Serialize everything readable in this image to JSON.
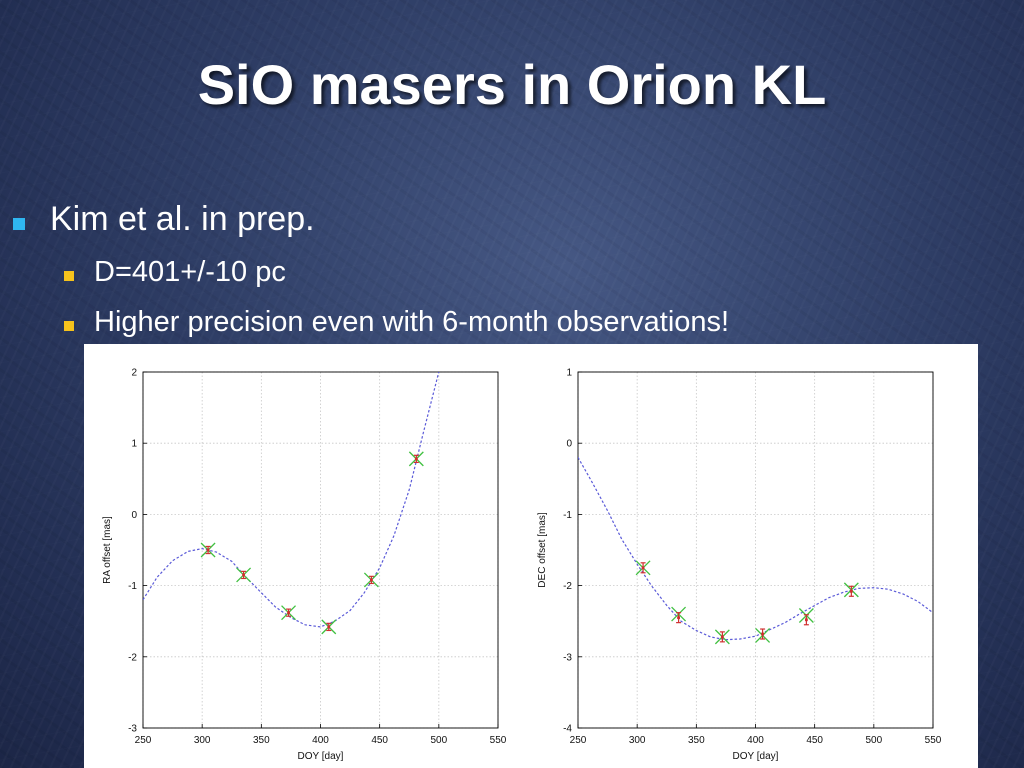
{
  "slide": {
    "title": "SiO masers in Orion KL",
    "bullet_1": "Kim et al. in prep.",
    "sub_bullets": [
      "D=401+/-10 pc",
      "Higher precision even with 6-month observations!"
    ]
  },
  "colors": {
    "bullet_level1": "#2fb6f0",
    "bullet_level2": "#f6c21c",
    "fit_curve": "#5a5ad8",
    "data_points": "#d03030",
    "model_points": "#40c040"
  },
  "chart_data": [
    {
      "type": "scatter",
      "title": "",
      "xlabel": "DOY [day]",
      "ylabel": "RA offset [mas]",
      "xlim": [
        250,
        550
      ],
      "ylim": [
        -3,
        2
      ],
      "xticks": [
        "250",
        "300",
        "350",
        "400",
        "450",
        "500",
        "550"
      ],
      "yticks": [
        "-3",
        "-2",
        "-1",
        "0",
        "1",
        "2"
      ],
      "grid": true,
      "series": [
        {
          "points": [
            {
              "x": 305,
              "y": -0.5,
              "yerr": 0.05
            },
            {
              "x": 335,
              "y": -0.85,
              "yerr": 0.05
            },
            {
              "x": 373,
              "y": -1.38,
              "yerr": 0.05
            },
            {
              "x": 407,
              "y": -1.58,
              "yerr": 0.05
            },
            {
              "x": 443,
              "y": -0.92,
              "yerr": 0.05
            },
            {
              "x": 481,
              "y": 0.78,
              "yerr": 0.05
            }
          ],
          "model_points": [
            {
              "x": 305,
              "y": -0.5
            },
            {
              "x": 335,
              "y": -0.85
            },
            {
              "x": 373,
              "y": -1.38
            },
            {
              "x": 407,
              "y": -1.58
            },
            {
              "x": 443,
              "y": -0.92
            },
            {
              "x": 481,
              "y": 0.78
            }
          ],
          "fit_curve": [
            [
              250,
              -1.2
            ],
            [
              262,
              -0.88
            ],
            [
              275,
              -0.65
            ],
            [
              288,
              -0.52
            ],
            [
              300,
              -0.48
            ],
            [
              312,
              -0.53
            ],
            [
              325,
              -0.66
            ],
            [
              337,
              -0.88
            ],
            [
              350,
              -1.1
            ],
            [
              362,
              -1.3
            ],
            [
              375,
              -1.45
            ],
            [
              387,
              -1.55
            ],
            [
              400,
              -1.58
            ],
            [
              412,
              -1.5
            ],
            [
              425,
              -1.35
            ],
            [
              437,
              -1.1
            ],
            [
              450,
              -0.75
            ],
            [
              462,
              -0.3
            ],
            [
              475,
              0.35
            ],
            [
              487,
              1.15
            ],
            [
              500,
              2.0
            ]
          ]
        }
      ]
    },
    {
      "type": "scatter",
      "title": "",
      "xlabel": "DOY [day]",
      "ylabel": "DEC offset [mas]",
      "xlim": [
        250,
        550
      ],
      "ylim": [
        -4,
        1
      ],
      "xticks": [
        "250",
        "300",
        "350",
        "400",
        "450",
        "500",
        "550"
      ],
      "yticks": [
        "-4",
        "-3",
        "-2",
        "-1",
        "0",
        "1"
      ],
      "grid": true,
      "series": [
        {
          "points": [
            {
              "x": 305,
              "y": -1.75,
              "yerr": 0.07
            },
            {
              "x": 335,
              "y": -2.45,
              "yerr": 0.07
            },
            {
              "x": 372,
              "y": -2.72,
              "yerr": 0.07
            },
            {
              "x": 406,
              "y": -2.68,
              "yerr": 0.07
            },
            {
              "x": 443,
              "y": -2.48,
              "yerr": 0.07
            },
            {
              "x": 481,
              "y": -2.08,
              "yerr": 0.07
            }
          ],
          "model_points": [
            {
              "x": 305,
              "y": -1.75
            },
            {
              "x": 335,
              "y": -2.4
            },
            {
              "x": 372,
              "y": -2.72
            },
            {
              "x": 406,
              "y": -2.7
            },
            {
              "x": 443,
              "y": -2.42
            },
            {
              "x": 481,
              "y": -2.06
            }
          ],
          "fit_curve": [
            [
              250,
              -0.2
            ],
            [
              262,
              -0.55
            ],
            [
              275,
              -0.95
            ],
            [
              287,
              -1.35
            ],
            [
              300,
              -1.7
            ],
            [
              312,
              -2.0
            ],
            [
              325,
              -2.28
            ],
            [
              337,
              -2.5
            ],
            [
              350,
              -2.63
            ],
            [
              362,
              -2.72
            ],
            [
              375,
              -2.76
            ],
            [
              387,
              -2.75
            ],
            [
              400,
              -2.71
            ],
            [
              412,
              -2.62
            ],
            [
              425,
              -2.52
            ],
            [
              437,
              -2.4
            ],
            [
              450,
              -2.28
            ],
            [
              462,
              -2.17
            ],
            [
              475,
              -2.09
            ],
            [
              487,
              -2.04
            ],
            [
              500,
              -2.03
            ],
            [
              512,
              -2.05
            ],
            [
              525,
              -2.12
            ],
            [
              537,
              -2.22
            ],
            [
              550,
              -2.38
            ]
          ]
        }
      ]
    }
  ]
}
